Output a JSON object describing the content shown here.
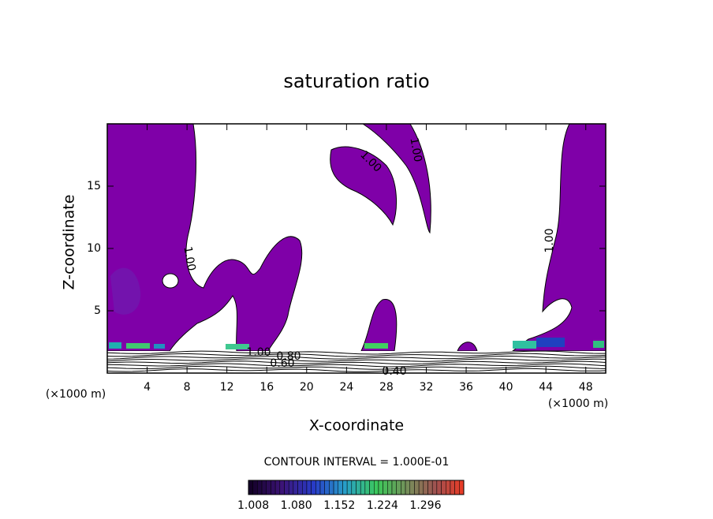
{
  "chart_data": {
    "type": "contour",
    "title": "saturation ratio",
    "x_label": "X-coordinate",
    "y_label": "Z-coordinate",
    "x_unit_left": "(×1000 m)",
    "x_unit_right": "(×1000 m)",
    "xlim": [
      0,
      50
    ],
    "xticks": [
      4,
      8,
      12,
      16,
      20,
      24,
      28,
      32,
      36,
      40,
      44,
      48
    ],
    "ylim": [
      0,
      20
    ],
    "yticks": [
      5,
      10,
      15
    ],
    "fill_color": "#7f00a8",
    "contour_labels": [
      {
        "value": 1,
        "label": "1.00"
      },
      {
        "value": 1,
        "label": "1.00"
      },
      {
        "value": 1,
        "label": "1.00"
      },
      {
        "value": 1,
        "label": "1.00"
      },
      {
        "value": 1,
        "label": "1.00"
      },
      {
        "value": 0.8,
        "label": "0.80"
      },
      {
        "value": 0.6,
        "label": "0.60"
      },
      {
        "value": 0.4,
        "label": "0.40"
      }
    ],
    "contour_interval": "CONTOUR INTERVAL = 1.000E-01",
    "colorbar": {
      "clim": [
        1.0,
        1.36
      ],
      "ticks": [
        {
          "value": 1.008,
          "label": "1.008"
        },
        {
          "value": 1.08,
          "label": "1.080"
        },
        {
          "value": 1.152,
          "label": "1.152"
        },
        {
          "value": 1.224,
          "label": "1.224"
        },
        {
          "value": 1.296,
          "label": "1.296"
        }
      ]
    }
  }
}
